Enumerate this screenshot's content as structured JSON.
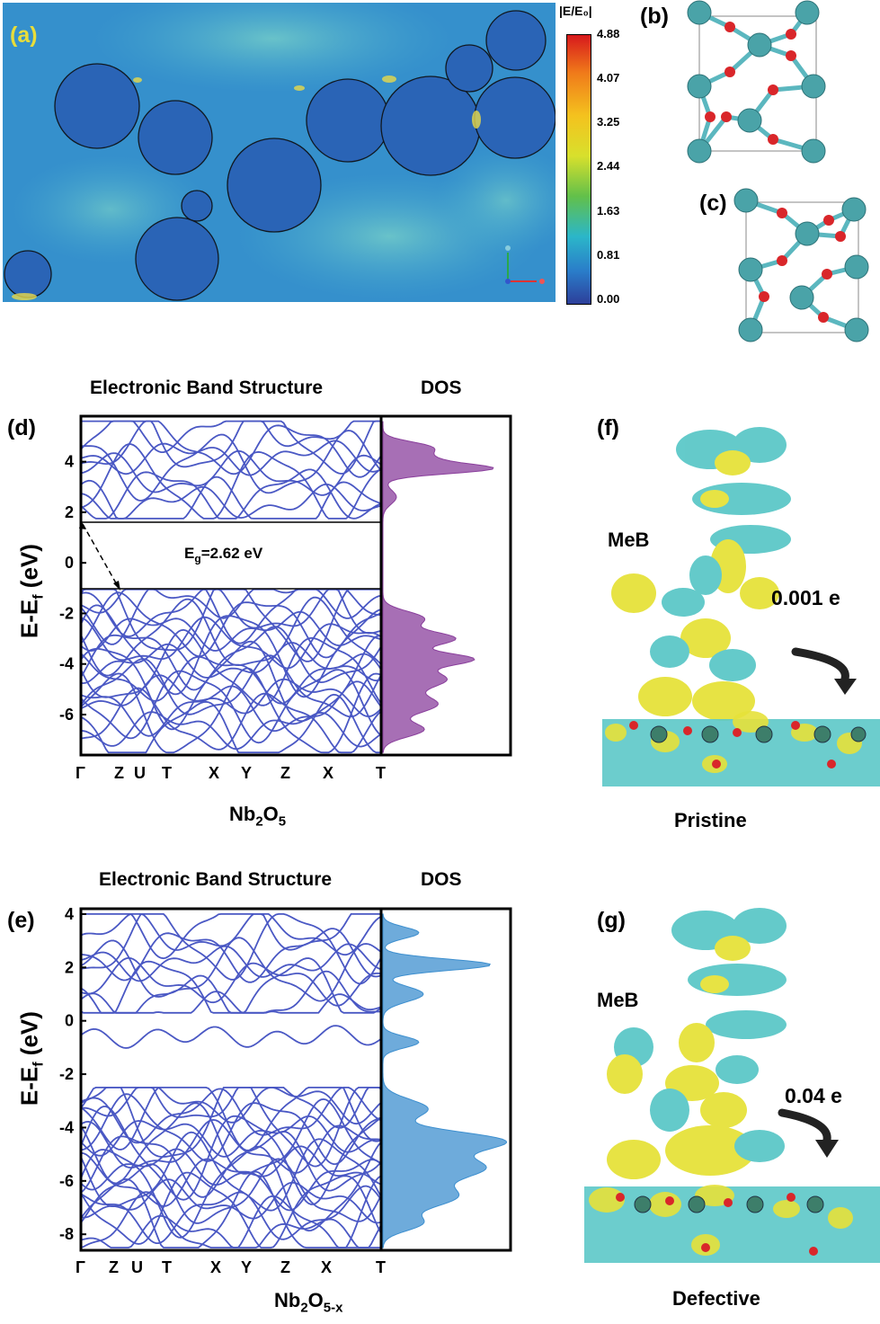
{
  "panel_labels": {
    "a": "(a)",
    "b": "(b)",
    "c": "(c)",
    "d": "(d)",
    "e": "(e)",
    "f": "(f)",
    "g": "(g)"
  },
  "colorbar": {
    "title": "|E/E₀|",
    "ticks": [
      "4.88",
      "4.07",
      "3.25",
      "2.44",
      "1.63",
      "0.81",
      "0.00"
    ],
    "colors": [
      "#d7191c",
      "#f07a1a",
      "#f4c21e",
      "#d8e02c",
      "#62c04a",
      "#2bb6c9",
      "#2a7cc9",
      "#2d3f9a"
    ]
  },
  "band_d": {
    "title": "Electronic Band Structure",
    "dos_title": "DOS",
    "ylabel": "E-E",
    "ylabel_sub": "f",
    "ylabel_unit": " (eV)",
    "yticks": [
      "4",
      "2",
      "0",
      "-2",
      "-4",
      "-6"
    ],
    "kpoints": [
      "Γ",
      "Z",
      "U",
      "T",
      "X",
      "Y",
      "Z",
      "X",
      "T"
    ],
    "gap_label_main": "E",
    "gap_label_sub": "g",
    "gap_label_value": "=2.62 eV",
    "compound_main": "Nb",
    "compound_sub1": "2",
    "compound_mid": "O",
    "compound_sub2": "5",
    "color": "#4a58c4",
    "dos_color": "#8a3f9c"
  },
  "band_e": {
    "title": "Electronic Band Structure",
    "dos_title": "DOS",
    "ylabel": "E-E",
    "ylabel_sub": "f",
    "ylabel_unit": " (eV)",
    "yticks": [
      "4",
      "2",
      "0",
      "-2",
      "-4",
      "-6",
      "-8"
    ],
    "kpoints": [
      "Γ",
      "Z",
      "U",
      "T",
      "X",
      "Y",
      "Z",
      "X",
      "T"
    ],
    "compound_main": "Nb",
    "compound_sub1": "2",
    "compound_mid": "O",
    "compound_sub2": "5-x",
    "color": "#4a58c4",
    "dos_color": "#3d8fcf"
  },
  "panel_f": {
    "molecule": "MeB",
    "charge": "0.001 e",
    "caption": "Pristine"
  },
  "panel_g": {
    "molecule": "MeB",
    "charge": "0.04 e",
    "caption": "Defective"
  }
}
